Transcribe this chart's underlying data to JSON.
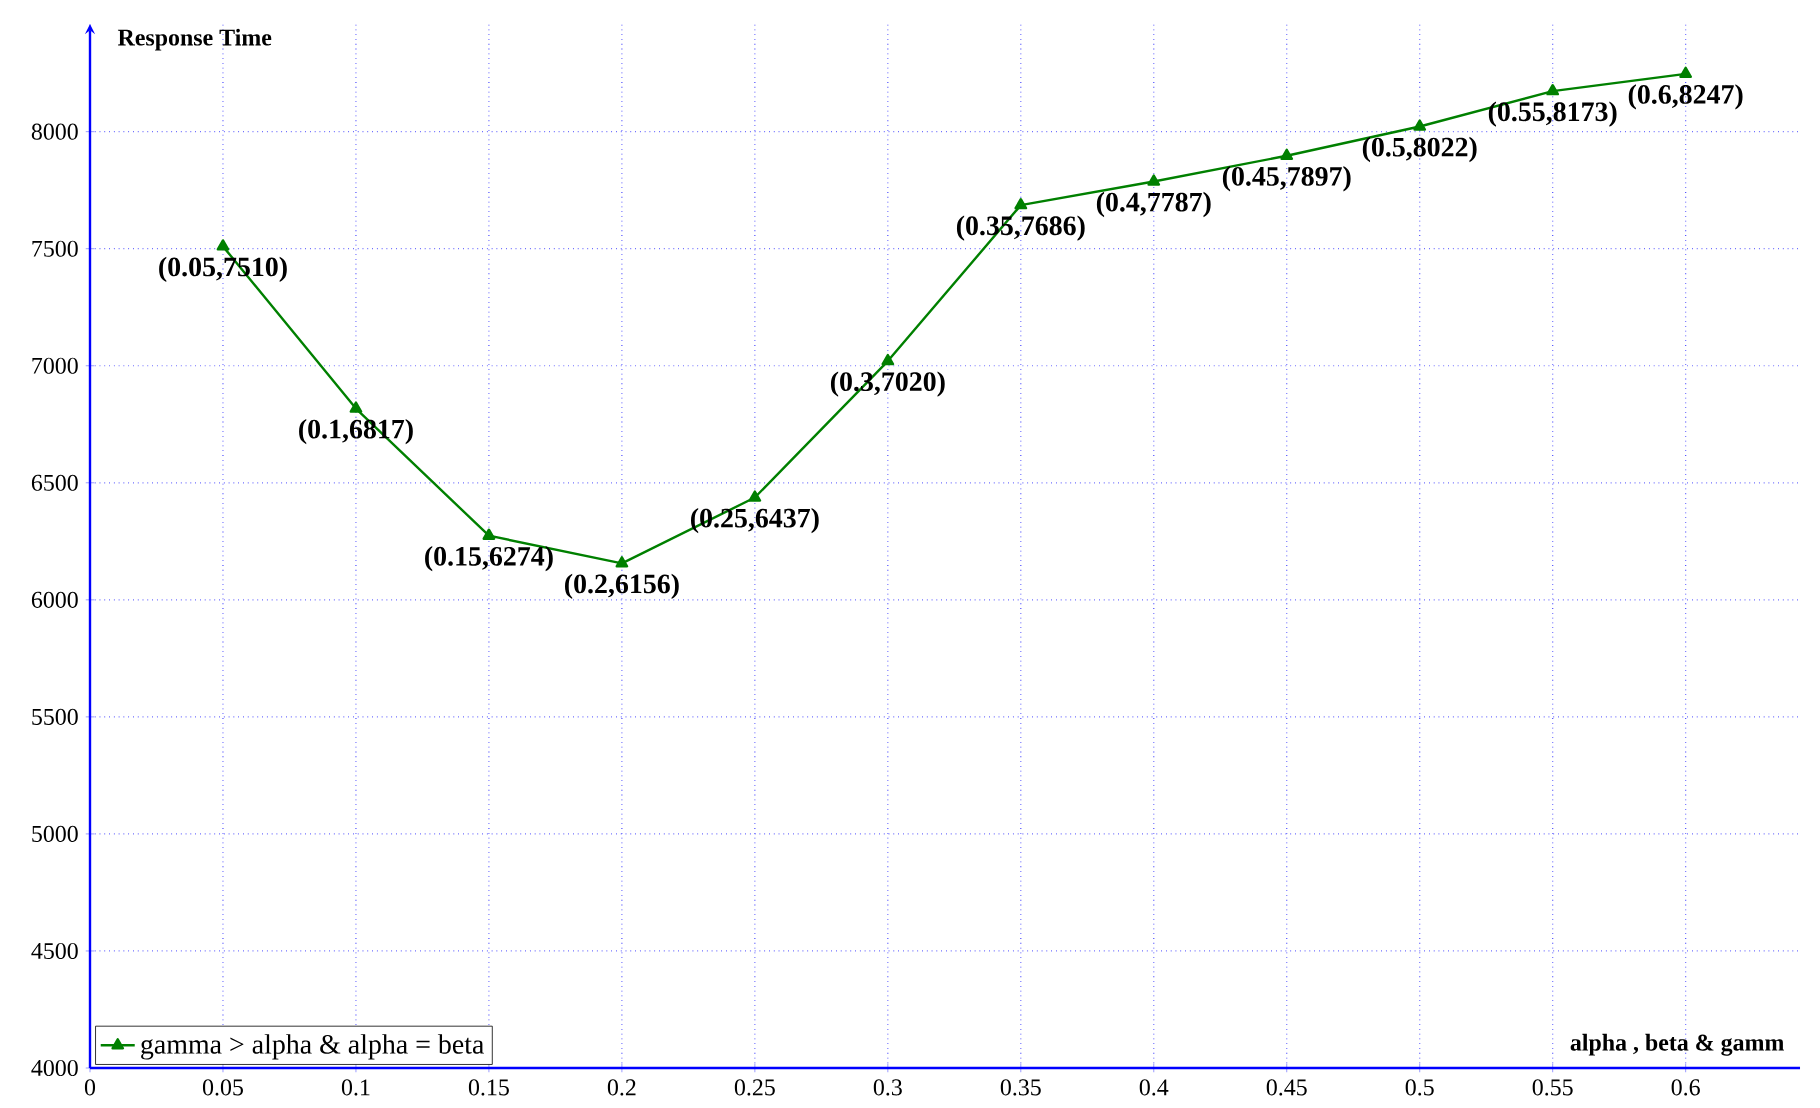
{
  "chart_data": {
    "type": "line",
    "ylabel": "Response Time",
    "xlabel": "alpha , beta & gamm",
    "x": [
      0.05,
      0.1,
      0.15,
      0.2,
      0.25,
      0.3,
      0.35,
      0.4,
      0.45,
      0.5,
      0.55,
      0.6
    ],
    "series": [
      {
        "name": "gamma > alpha & alpha = beta",
        "color": "#008000",
        "values": [
          7510,
          6817,
          6274,
          6156,
          6437,
          7020,
          7686,
          7787,
          7897,
          8022,
          8173,
          8247
        ],
        "value_labels": [
          "(0.05,7510)",
          "(0.1,6817)",
          "(0.15,6274)",
          "(0.2,6156)",
          "(0.25,6437)",
          "(0.3,7020)",
          "(0.35,7686)",
          "(0.4,7787)",
          "(0.45,7897)",
          "(0.5,8022)",
          "(0.55,8173)",
          "(0.6,8247)"
        ]
      }
    ],
    "xlim": [
      0,
      0.643
    ],
    "ylim": [
      4000,
      8460
    ],
    "xticks": [
      0,
      0.05,
      0.1,
      0.15,
      0.2,
      0.25,
      0.3,
      0.35,
      0.4,
      0.45,
      0.5,
      0.55,
      0.6
    ],
    "yticks": [
      4000,
      4500,
      5000,
      5500,
      6000,
      6500,
      7000,
      7500,
      8000
    ],
    "grid": true,
    "legend": "bottom left",
    "marker": "triangle",
    "line_style": "solid"
  }
}
